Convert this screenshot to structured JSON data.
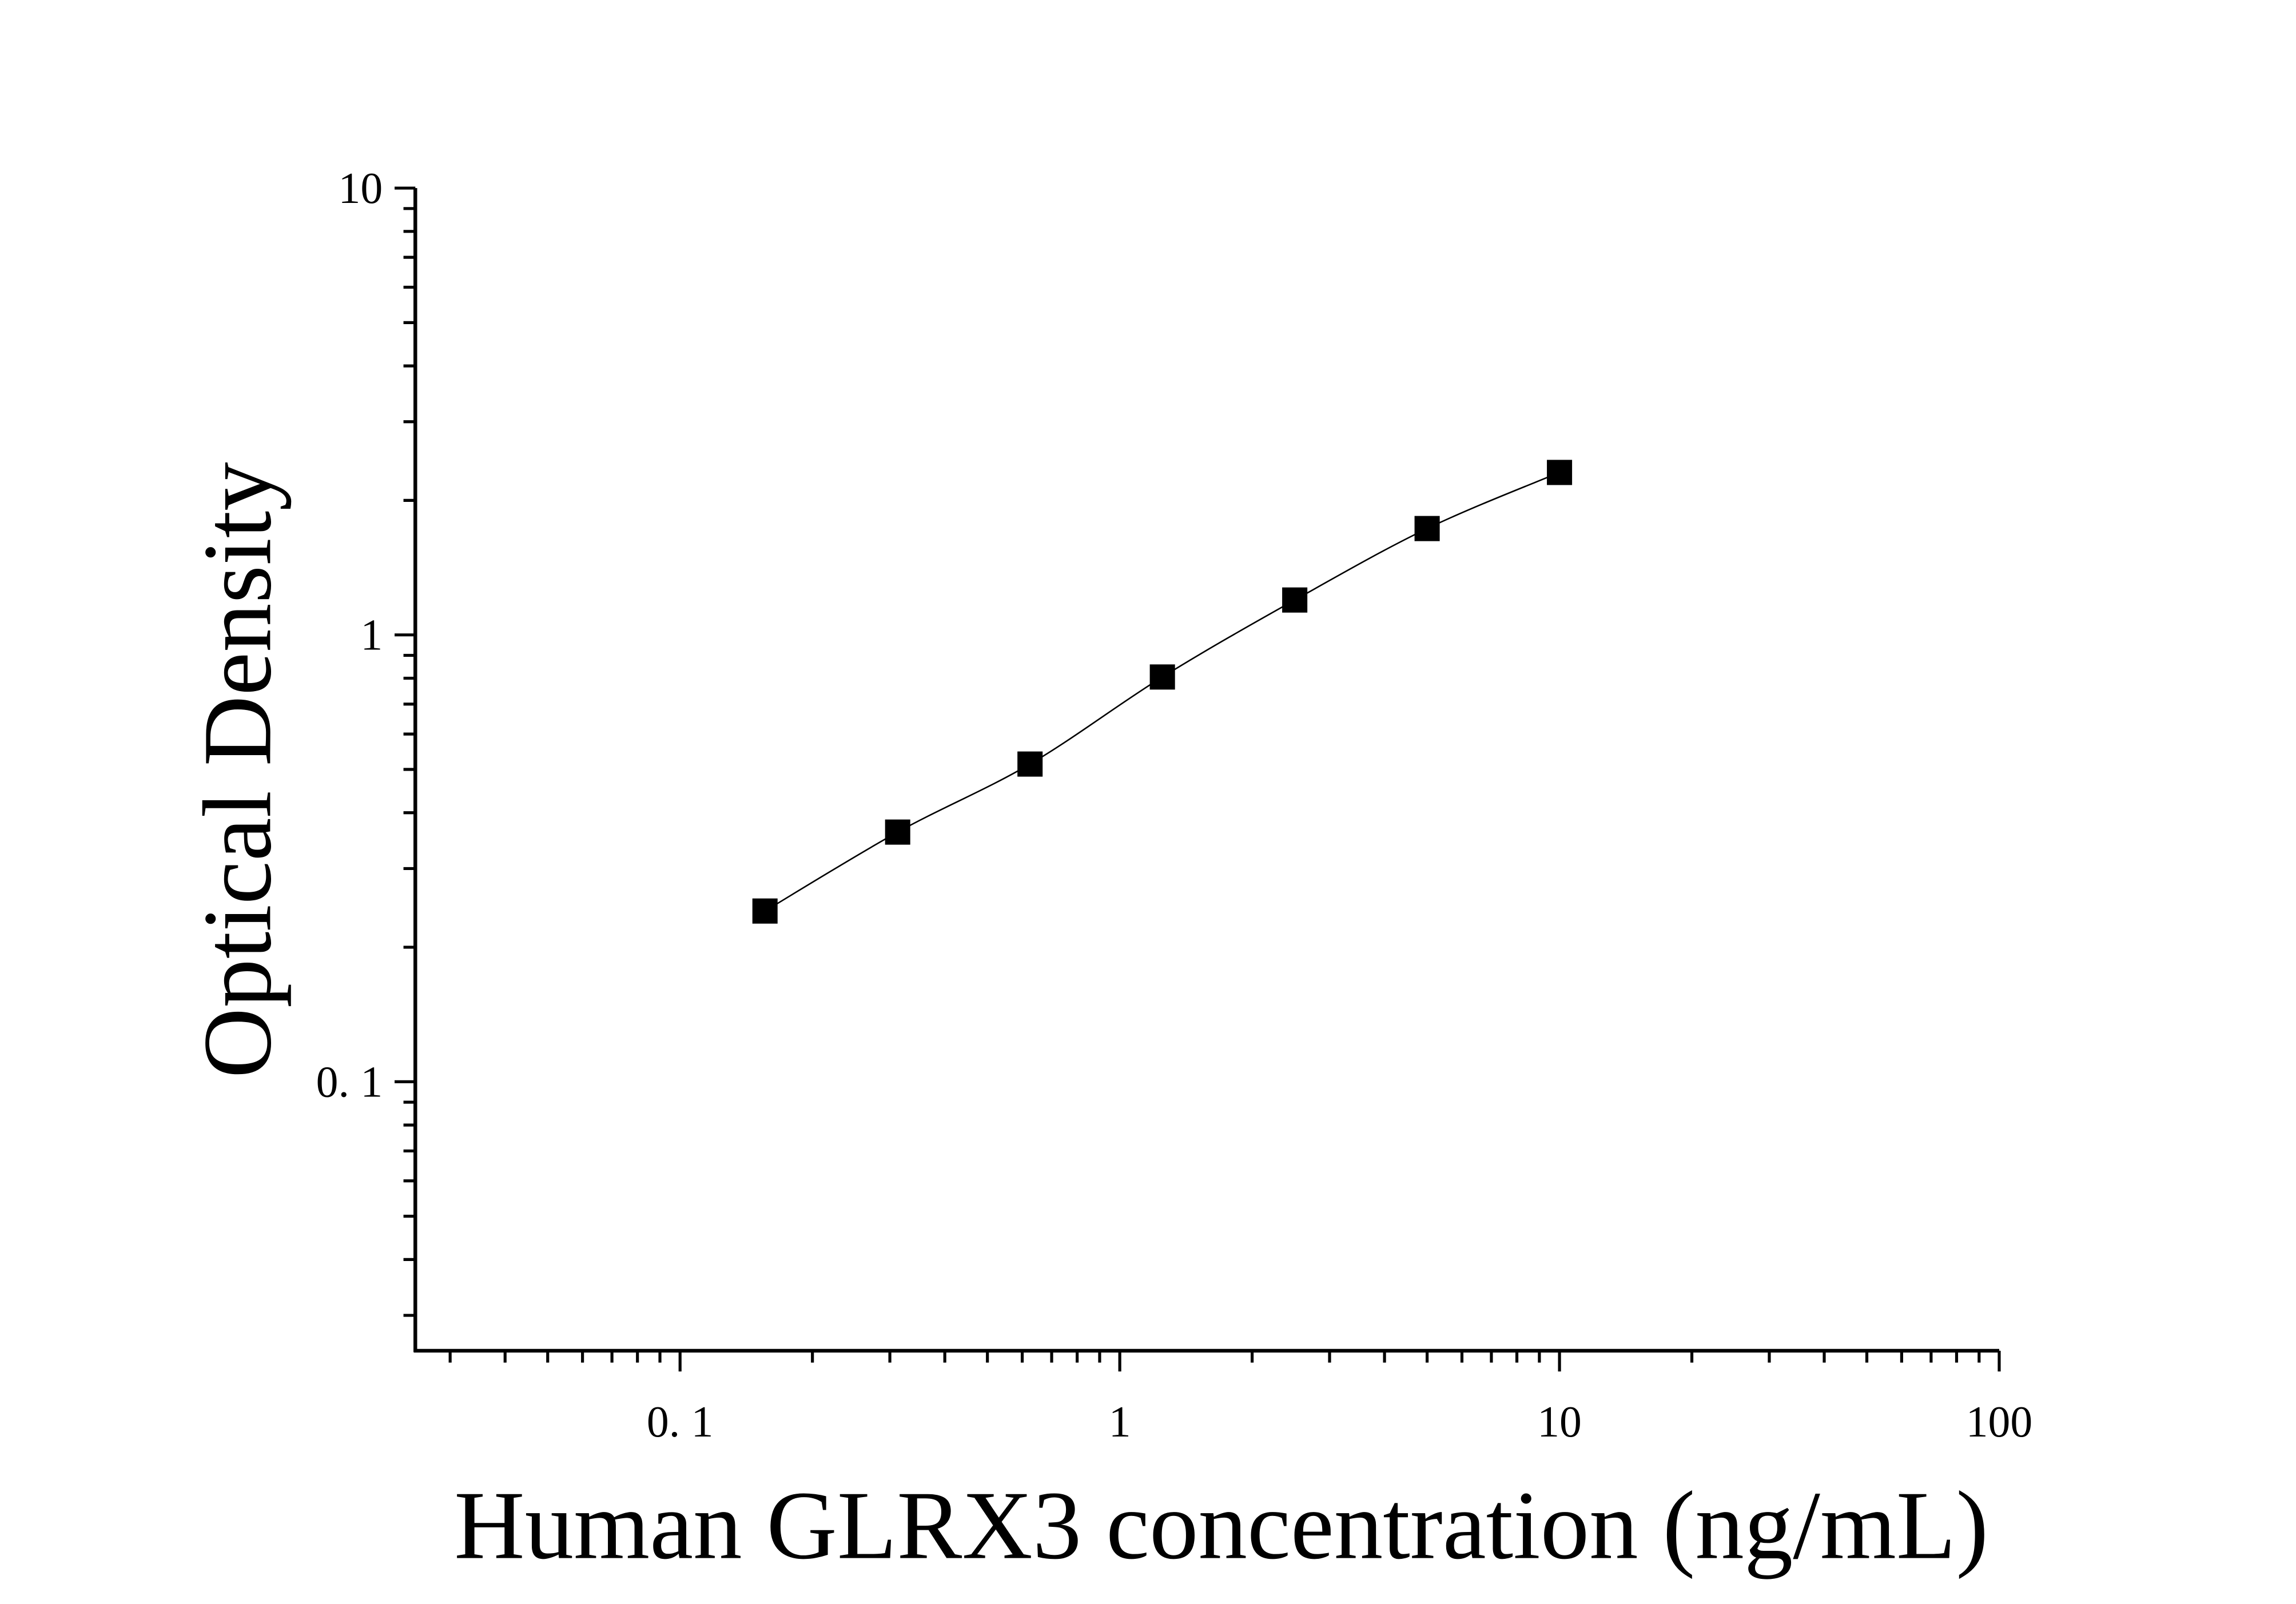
{
  "chart_data": {
    "type": "scatter",
    "title": "",
    "xlabel": "Human GLRX3 concentration (ng/mL)",
    "ylabel": "Optical Density",
    "xscale": "log",
    "yscale": "log",
    "xlim": [
      0.025,
      100
    ],
    "ylim": [
      0.025,
      10
    ],
    "xticks": [
      0.1,
      1,
      10,
      100
    ],
    "xtick_labels": [
      "0. 1",
      "1",
      "10",
      "100"
    ],
    "yticks": [
      0.1,
      1,
      10
    ],
    "ytick_labels": [
      "0. 1",
      "1",
      "10"
    ],
    "grid": false,
    "marker": "square",
    "fit_curve": true,
    "color": "#000000",
    "x": [
      0.156,
      0.3125,
      0.625,
      1.25,
      2.5,
      5,
      10
    ],
    "y": [
      0.241,
      0.362,
      0.514,
      0.805,
      1.197,
      1.73,
      2.31
    ]
  }
}
